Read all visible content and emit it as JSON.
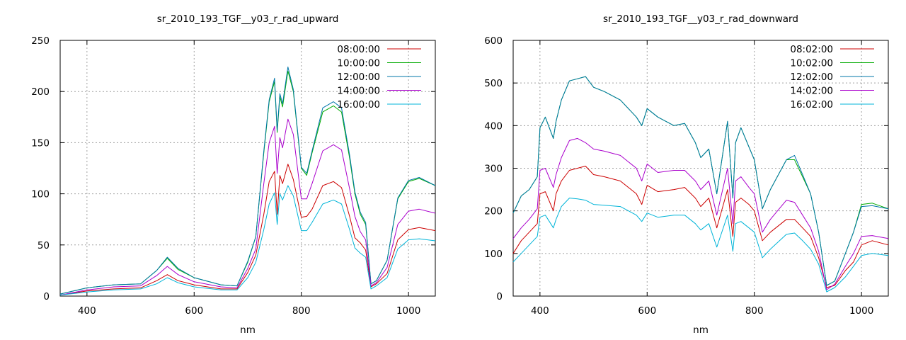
{
  "chart_data": [
    {
      "type": "line",
      "title": "sr_2010_193_TGF__y03_r_rad_upward",
      "xlabel": "nm",
      "ylabel": "",
      "xlim": [
        350,
        1050
      ],
      "ylim": [
        0,
        250
      ],
      "xticks": [
        400,
        600,
        800,
        1000
      ],
      "yticks": [
        0,
        50,
        100,
        150,
        200,
        250
      ],
      "grid": true,
      "legend_position": "top-right",
      "x": [
        350,
        400,
        450,
        500,
        530,
        550,
        570,
        600,
        650,
        680,
        700,
        715,
        730,
        740,
        750,
        755,
        760,
        765,
        775,
        785,
        800,
        810,
        820,
        840,
        860,
        875,
        890,
        900,
        910,
        920,
        930,
        940,
        960,
        980,
        1000,
        1020,
        1050
      ],
      "series": [
        {
          "name": "08:00:00",
          "color": "#cc0000",
          "values": [
            1,
            5,
            7,
            8,
            15,
            21,
            15,
            11,
            7,
            7,
            23,
            40,
            80,
            112,
            122,
            80,
            118,
            110,
            129,
            114,
            77,
            78,
            85,
            108,
            112,
            106,
            78,
            57,
            52,
            45,
            9,
            12,
            22,
            55,
            65,
            67,
            64
          ]
        },
        {
          "name": "10:00:00",
          "color": "#00aa00",
          "values": [
            2,
            8,
            11,
            12,
            25,
            37,
            26,
            18,
            11,
            10,
            33,
            58,
            140,
            190,
            210,
            160,
            195,
            185,
            220,
            200,
            125,
            118,
            140,
            180,
            186,
            180,
            135,
            100,
            80,
            70,
            12,
            15,
            35,
            95,
            112,
            115,
            108
          ]
        },
        {
          "name": "12:00:00",
          "color": "#0077aa",
          "values": [
            2,
            8,
            11,
            12,
            25,
            38,
            27,
            18,
            11,
            10,
            34,
            58,
            142,
            192,
            213,
            162,
            198,
            188,
            224,
            202,
            126,
            120,
            142,
            184,
            190,
            184,
            138,
            102,
            82,
            72,
            12,
            15,
            35,
            96,
            113,
            116,
            108
          ]
        },
        {
          "name": "14:00:00",
          "color": "#aa00cc",
          "values": [
            1,
            6,
            9,
            10,
            20,
            29,
            21,
            14,
            9,
            8,
            27,
            46,
            110,
            150,
            166,
            120,
            155,
            145,
            173,
            158,
            95,
            95,
            110,
            142,
            148,
            143,
            105,
            78,
            63,
            55,
            10,
            13,
            28,
            70,
            83,
            85,
            81
          ]
        },
        {
          "name": "16:00:00",
          "color": "#00b4d8",
          "values": [
            1,
            4,
            6,
            7,
            12,
            18,
            13,
            9,
            6,
            6,
            18,
            33,
            65,
            90,
            101,
            70,
            100,
            94,
            108,
            98,
            64,
            64,
            72,
            90,
            94,
            90,
            65,
            47,
            42,
            38,
            7,
            10,
            18,
            46,
            55,
            56,
            54
          ]
        }
      ]
    },
    {
      "type": "line",
      "title": "sr_2010_193_TGF__y03_r_rad_downward",
      "xlabel": "nm",
      "ylabel": "",
      "xlim": [
        350,
        1050
      ],
      "ylim": [
        0,
        600
      ],
      "xticks": [
        400,
        600,
        800,
        1000
      ],
      "yticks": [
        0,
        100,
        200,
        300,
        400,
        500,
        600
      ],
      "grid": true,
      "legend_position": "top-right",
      "x": [
        350,
        365,
        380,
        395,
        400,
        410,
        425,
        430,
        440,
        455,
        470,
        485,
        500,
        520,
        550,
        580,
        590,
        600,
        620,
        650,
        670,
        690,
        700,
        715,
        730,
        750,
        760,
        765,
        775,
        790,
        800,
        815,
        830,
        860,
        875,
        890,
        905,
        920,
        935,
        950,
        970,
        985,
        1000,
        1020,
        1050
      ],
      "series": [
        {
          "name": "08:02:00",
          "color": "#cc0000",
          "values": [
            100,
            130,
            150,
            170,
            240,
            245,
            200,
            240,
            270,
            295,
            300,
            305,
            285,
            280,
            270,
            240,
            215,
            260,
            245,
            250,
            255,
            230,
            210,
            230,
            160,
            250,
            140,
            220,
            230,
            215,
            200,
            130,
            150,
            180,
            180,
            160,
            140,
            90,
            20,
            25,
            60,
            80,
            120,
            130,
            120
          ]
        },
        {
          "name": "10:02:00",
          "color": "#00aa00",
          "values": [
            195,
            235,
            250,
            280,
            395,
            420,
            370,
            410,
            460,
            505,
            510,
            515,
            490,
            480,
            460,
            420,
            400,
            440,
            420,
            400,
            405,
            360,
            325,
            345,
            240,
            410,
            230,
            360,
            395,
            350,
            320,
            205,
            250,
            320,
            320,
            280,
            240,
            150,
            25,
            35,
            100,
            150,
            215,
            218,
            205
          ]
        },
        {
          "name": "12:02:00",
          "color": "#0077aa",
          "values": [
            195,
            235,
            250,
            280,
            395,
            420,
            370,
            410,
            460,
            505,
            510,
            515,
            490,
            480,
            460,
            420,
            400,
            440,
            420,
            400,
            405,
            360,
            325,
            345,
            240,
            410,
            230,
            360,
            395,
            350,
            320,
            205,
            250,
            320,
            330,
            285,
            240,
            150,
            25,
            35,
            100,
            150,
            210,
            212,
            205
          ]
        },
        {
          "name": "14:02:00",
          "color": "#aa00cc",
          "values": [
            135,
            160,
            180,
            205,
            295,
            300,
            255,
            285,
            325,
            365,
            370,
            360,
            345,
            340,
            330,
            300,
            270,
            310,
            290,
            295,
            295,
            270,
            250,
            270,
            190,
            300,
            170,
            270,
            280,
            255,
            240,
            150,
            180,
            225,
            220,
            190,
            160,
            105,
            15,
            28,
            70,
            100,
            140,
            142,
            135
          ]
        },
        {
          "name": "16:02:00",
          "color": "#00b4d8",
          "values": [
            80,
            100,
            120,
            140,
            185,
            190,
            160,
            180,
            210,
            230,
            228,
            225,
            215,
            213,
            210,
            190,
            175,
            195,
            185,
            190,
            190,
            170,
            155,
            170,
            115,
            190,
            105,
            170,
            175,
            160,
            150,
            90,
            110,
            145,
            148,
            130,
            110,
            75,
            10,
            20,
            45,
            70,
            95,
            100,
            95
          ]
        }
      ]
    }
  ]
}
